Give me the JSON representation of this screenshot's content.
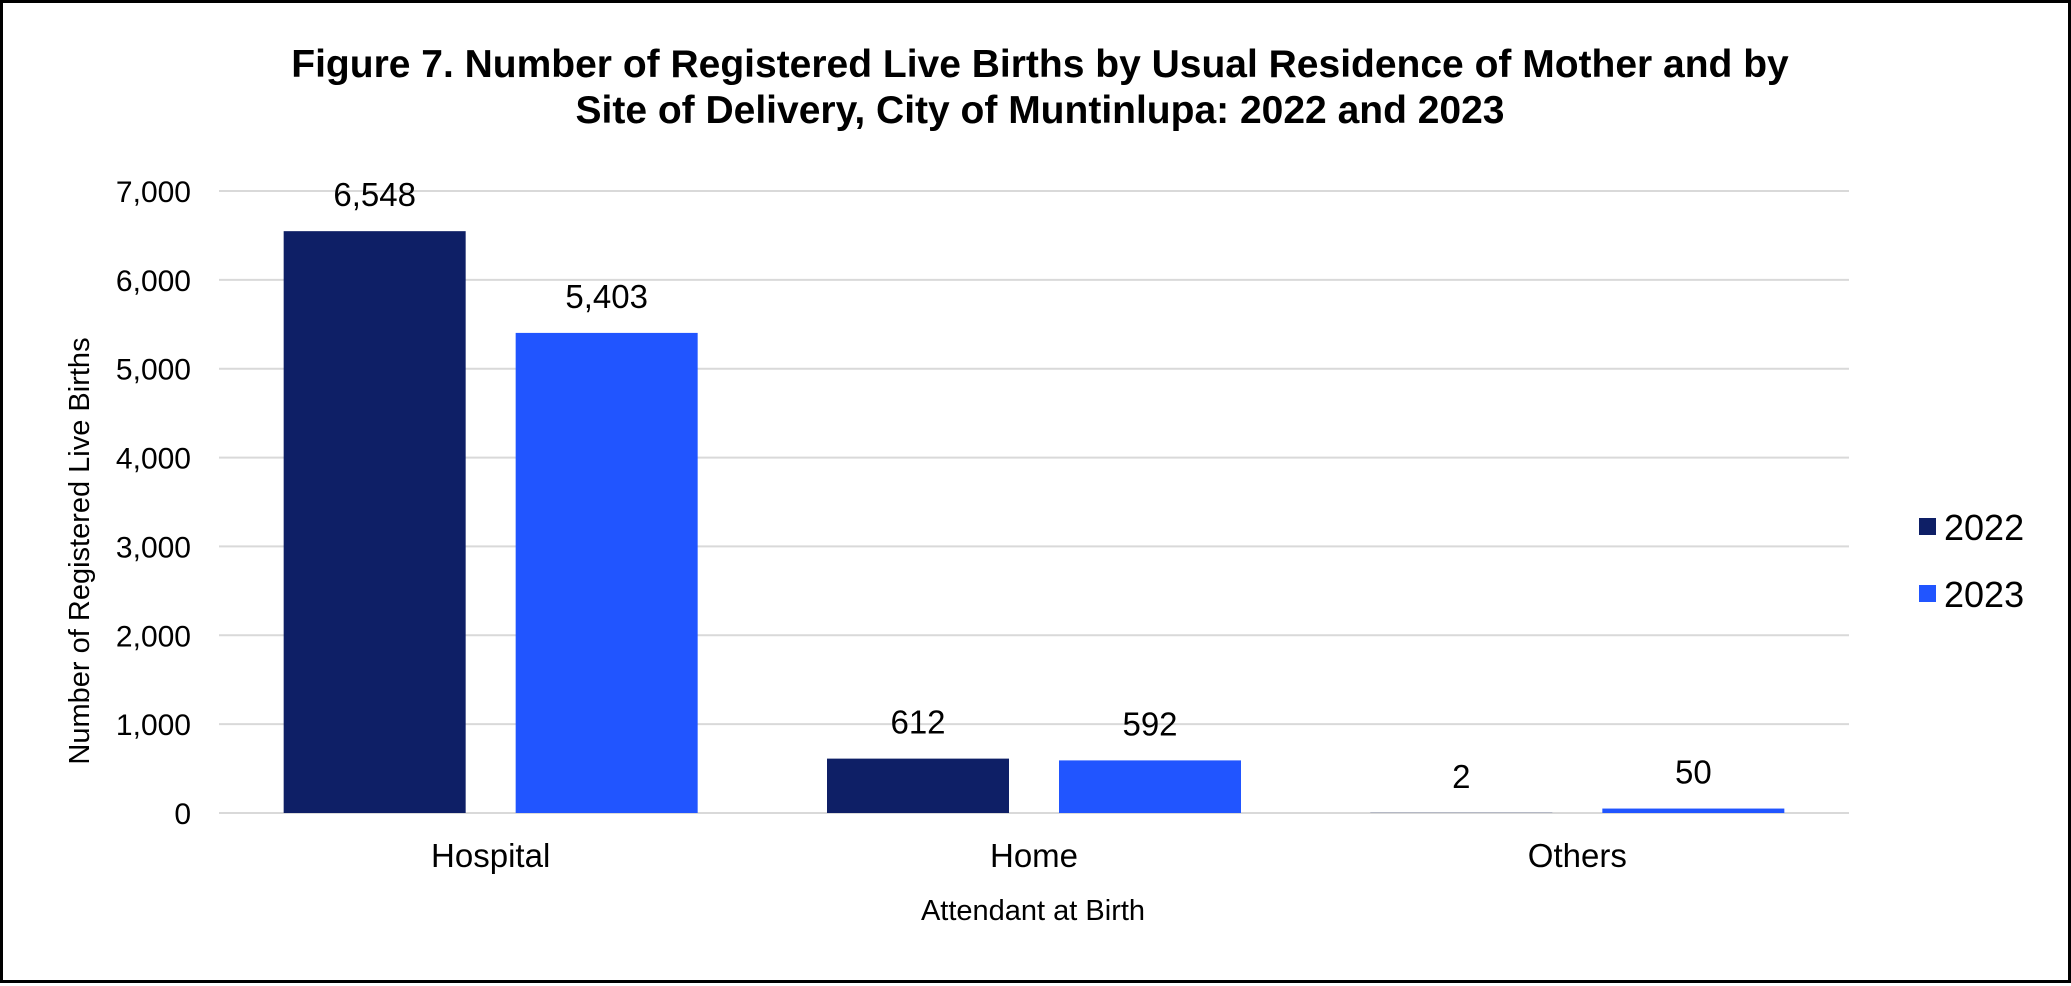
{
  "chart_data": {
    "type": "bar",
    "title": [
      "Figure 7. Number of Registered Live Births by Usual Residence of Mother and by",
      "Site of Delivery, City of Muntinlupa: 2022 and 2023"
    ],
    "xlabel": "Attendant at Birth",
    "ylabel": "Number of Registered Live Births",
    "categories": [
      "Hospital",
      "Home",
      "Others"
    ],
    "series": [
      {
        "name": "2022",
        "values": [
          6548,
          612,
          2
        ],
        "labels": [
          "6,548",
          "612",
          "2"
        ],
        "color": "#0e1f66"
      },
      {
        "name": "2023",
        "values": [
          5403,
          592,
          50
        ],
        "labels": [
          "5,403",
          "592",
          "50"
        ],
        "color": "#2155ff"
      }
    ],
    "ylim": [
      0,
      7000
    ],
    "yticks": [
      0,
      1000,
      2000,
      3000,
      4000,
      5000,
      6000,
      7000
    ],
    "ytick_labels": [
      "0",
      "1,000",
      "2,000",
      "3,000",
      "4,000",
      "5,000",
      "6,000",
      "7,000"
    ],
    "grid": true,
    "gridline_color": "#d9d9d9",
    "legend_position": "right"
  }
}
